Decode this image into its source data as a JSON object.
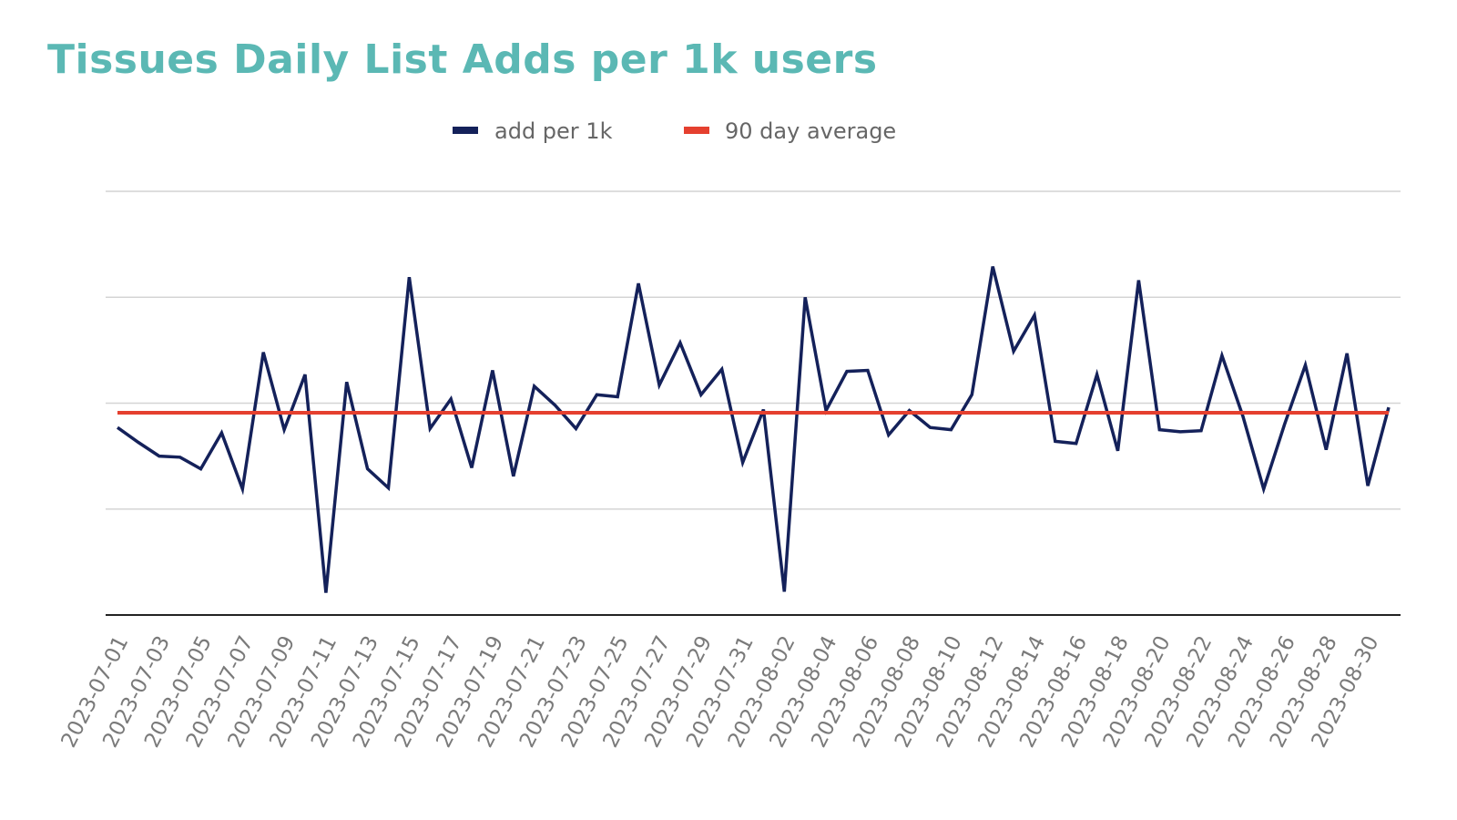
{
  "chart_data": {
    "type": "line",
    "title": "Tissues Daily List Adds per 1k users",
    "xlabel": "",
    "ylabel": "",
    "ylim": [
      0,
      4
    ],
    "grid": true,
    "legend_position": "top",
    "x": [
      "2023-07-01",
      "2023-07-02",
      "2023-07-03",
      "2023-07-04",
      "2023-07-05",
      "2023-07-06",
      "2023-07-07",
      "2023-07-08",
      "2023-07-09",
      "2023-07-10",
      "2023-07-11",
      "2023-07-12",
      "2023-07-13",
      "2023-07-14",
      "2023-07-15",
      "2023-07-16",
      "2023-07-17",
      "2023-07-18",
      "2023-07-19",
      "2023-07-20",
      "2023-07-21",
      "2023-07-22",
      "2023-07-23",
      "2023-07-24",
      "2023-07-25",
      "2023-07-26",
      "2023-07-27",
      "2023-07-28",
      "2023-07-29",
      "2023-07-30",
      "2023-07-31",
      "2023-08-01",
      "2023-08-02",
      "2023-08-03",
      "2023-08-04",
      "2023-08-05",
      "2023-08-06",
      "2023-08-07",
      "2023-08-08",
      "2023-08-09",
      "2023-08-10",
      "2023-08-11",
      "2023-08-12",
      "2023-08-13",
      "2023-08-14",
      "2023-08-15",
      "2023-08-16",
      "2023-08-17",
      "2023-08-18",
      "2023-08-19",
      "2023-08-20",
      "2023-08-21",
      "2023-08-22",
      "2023-08-23",
      "2023-08-24",
      "2023-08-25",
      "2023-08-26",
      "2023-08-27",
      "2023-08-28",
      "2023-08-29",
      "2023-08-30",
      "2023-08-31"
    ],
    "tick_labels": [
      "2023-07-01",
      "2023-07-03",
      "2023-07-05",
      "2023-07-07",
      "2023-07-09",
      "2023-07-11",
      "2023-07-13",
      "2023-07-15",
      "2023-07-17",
      "2023-07-19",
      "2023-07-21",
      "2023-07-23",
      "2023-07-25",
      "2023-07-27",
      "2023-07-29",
      "2023-07-31",
      "2023-08-02",
      "2023-08-04",
      "2023-08-06",
      "2023-08-08",
      "2023-08-10",
      "2023-08-12",
      "2023-08-14",
      "2023-08-16",
      "2023-08-18",
      "2023-08-20",
      "2023-08-22",
      "2023-08-24",
      "2023-08-26",
      "2023-08-28",
      "2023-08-30"
    ],
    "series": [
      {
        "name": "add per 1k",
        "color": "#14215a",
        "values": [
          1.77,
          1.63,
          1.5,
          1.49,
          1.38,
          1.72,
          1.19,
          2.48,
          1.75,
          2.27,
          0.21,
          2.2,
          1.38,
          1.2,
          3.19,
          1.76,
          2.04,
          1.39,
          2.31,
          1.31,
          2.16,
          1.98,
          1.76,
          2.08,
          2.06,
          3.13,
          2.17,
          2.57,
          2.08,
          2.32,
          1.44,
          1.94,
          0.22,
          3.0,
          1.93,
          2.3,
          2.31,
          1.7,
          1.93,
          1.77,
          1.75,
          2.08,
          3.29,
          2.49,
          2.83,
          1.64,
          1.62,
          2.27,
          1.55,
          3.16,
          1.75,
          1.73,
          1.74,
          2.45,
          1.88,
          1.19,
          1.8,
          2.36,
          1.56,
          2.47,
          1.22,
          1.96
        ]
      },
      {
        "name": "90 day average",
        "color": "#e5402f",
        "values": [
          1.91,
          1.91,
          1.91,
          1.91,
          1.91,
          1.91,
          1.91,
          1.91,
          1.91,
          1.91,
          1.91,
          1.91,
          1.91,
          1.91,
          1.91,
          1.91,
          1.91,
          1.91,
          1.91,
          1.91,
          1.91,
          1.91,
          1.91,
          1.91,
          1.91,
          1.91,
          1.91,
          1.91,
          1.91,
          1.91,
          1.91,
          1.91,
          1.91,
          1.91,
          1.91,
          1.91,
          1.91,
          1.91,
          1.91,
          1.91,
          1.91,
          1.91,
          1.91,
          1.91,
          1.91,
          1.91,
          1.91,
          1.91,
          1.91,
          1.91,
          1.91,
          1.91,
          1.91,
          1.91,
          1.91,
          1.91,
          1.91,
          1.91,
          1.91,
          1.91,
          1.91,
          1.91
        ]
      }
    ]
  },
  "colors": {
    "title": "#5bb8b4",
    "grid": "#d4d4d4",
    "axis": "#222222"
  }
}
